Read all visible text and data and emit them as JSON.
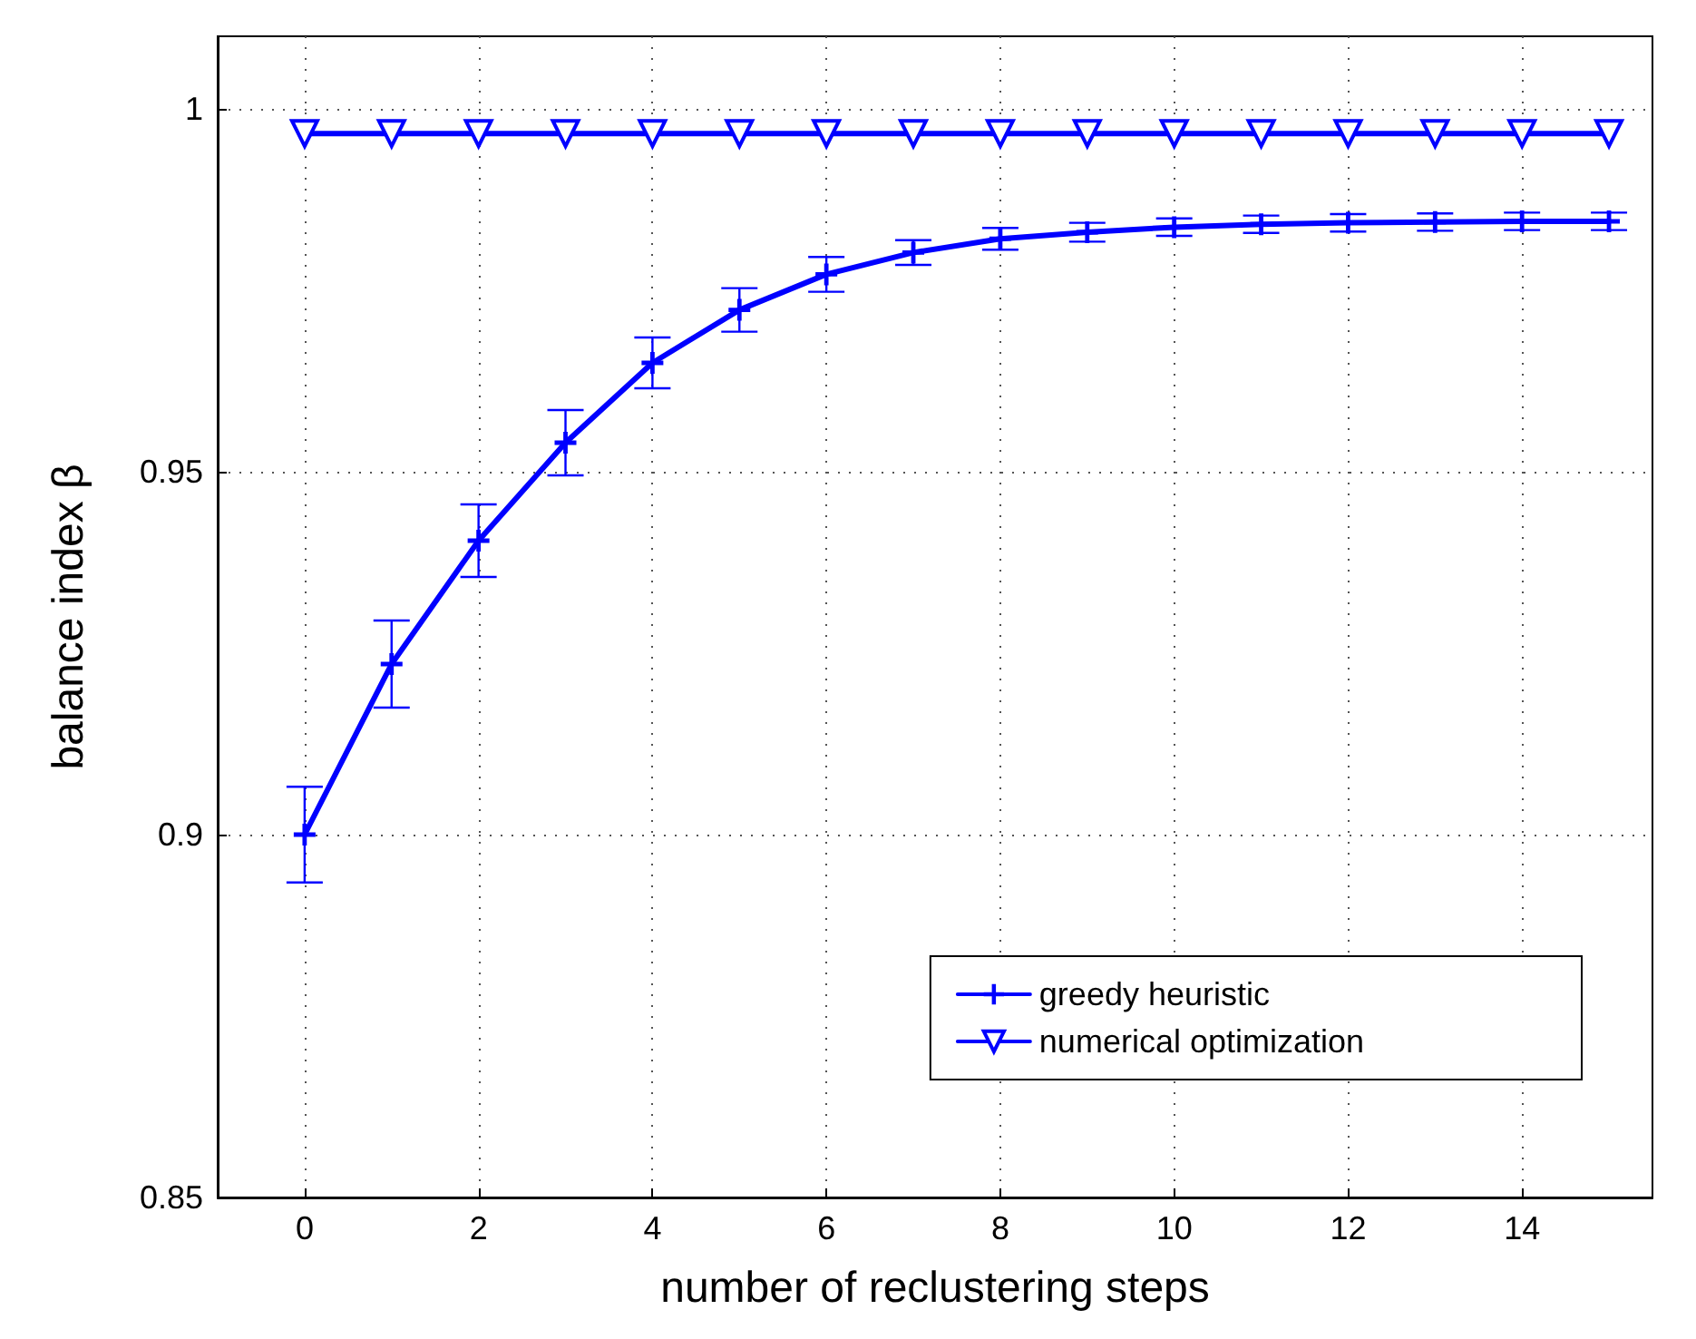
{
  "chart_data": {
    "type": "line",
    "xlabel": "number of reclustering steps",
    "ylabel": "balance index β",
    "x": [
      0,
      1,
      2,
      3,
      4,
      5,
      6,
      7,
      8,
      9,
      10,
      11,
      12,
      13,
      14,
      15
    ],
    "series": [
      {
        "name": "greedy heuristic",
        "color": "#0000ff",
        "marker": "cross",
        "values": [
          0.9,
          0.9235,
          0.9405,
          0.954,
          0.965,
          0.9723,
          0.9772,
          0.9802,
          0.9821,
          0.983,
          0.9837,
          0.9841,
          0.9843,
          0.9844,
          0.9845,
          0.9845
        ],
        "errors": [
          0.0066,
          0.006,
          0.005,
          0.0045,
          0.0035,
          0.003,
          0.0024,
          0.0017,
          0.0015,
          0.0013,
          0.0012,
          0.0012,
          0.0012,
          0.0012,
          0.0012,
          0.0012
        ]
      },
      {
        "name": "numerical optimization",
        "color": "#0000ff",
        "marker": "triangle",
        "values": [
          0.9966,
          0.9966,
          0.9966,
          0.9966,
          0.9966,
          0.9966,
          0.9966,
          0.9966,
          0.9966,
          0.9966,
          0.9966,
          0.9966,
          0.9966,
          0.9966,
          0.9966,
          0.9966
        ]
      }
    ],
    "xlim": [
      -1,
      15.5
    ],
    "xticks": [
      0,
      2,
      4,
      6,
      8,
      10,
      12,
      14
    ],
    "ylim": [
      0.85,
      1.01
    ],
    "yticks": [
      0.85,
      0.9,
      0.95,
      1
    ],
    "grid": true,
    "legend": "bottom right",
    "line_style": "solid"
  }
}
